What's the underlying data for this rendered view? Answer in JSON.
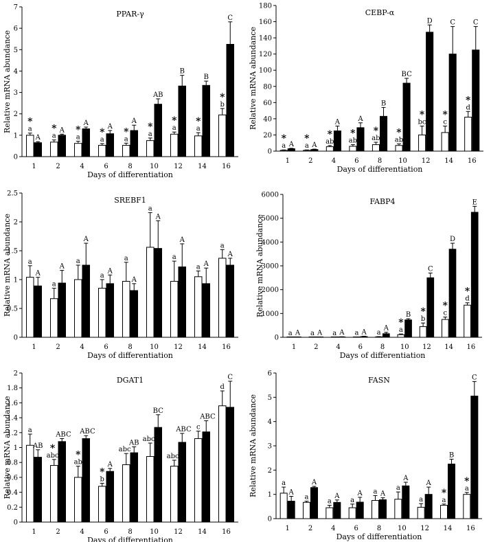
{
  "figure": {
    "panel_count": 6
  },
  "chart_data": [
    {
      "type": "bar",
      "title": "PPAR-γ",
      "xlabel": "Days of differentiation",
      "ylabel": "Relative mRNA abundance",
      "categories": [
        "1",
        "2",
        "4",
        "6",
        "8",
        "10",
        "12",
        "14",
        "16"
      ],
      "ylim": [
        0,
        7
      ],
      "yticks": [
        "0",
        "1",
        "2",
        "3",
        "4",
        "5",
        "6",
        "7"
      ],
      "series": [
        {
          "name": "open",
          "fill": "#ffffff",
          "values": [
            1.0,
            0.68,
            0.62,
            0.53,
            0.53,
            0.75,
            1.05,
            0.97,
            1.95
          ],
          "errors": [
            0.1,
            0.1,
            0.1,
            0.08,
            0.1,
            0.12,
            0.1,
            0.15,
            0.3
          ],
          "letters": [
            "a",
            "a",
            "a",
            "a",
            "a",
            "a",
            "a",
            "a",
            "b"
          ],
          "stars": [
            "*",
            "*",
            "*",
            "*",
            "*",
            "*",
            "*",
            "*",
            "*"
          ]
        },
        {
          "name": "filled",
          "fill": "#000000",
          "values": [
            0.65,
            1.0,
            1.3,
            1.07,
            1.22,
            2.45,
            3.3,
            3.33,
            5.25
          ],
          "errors": [
            0.05,
            0.05,
            0.08,
            0.15,
            0.25,
            0.25,
            0.5,
            0.2,
            1.05
          ],
          "letters": [
            "A",
            "A",
            "A",
            "A",
            "A",
            "AB",
            "B",
            "B",
            "C"
          ]
        }
      ]
    },
    {
      "type": "bar",
      "title": "CEBP-α",
      "xlabel": "Days of differentiation",
      "ylabel": "Relative mRNA abundance",
      "categories": [
        "1",
        "2",
        "4",
        "6",
        "8",
        "10",
        "12",
        "14",
        "16"
      ],
      "ylim": [
        0,
        180
      ],
      "yticks": [
        "0",
        "20",
        "40",
        "60",
        "80",
        "100",
        "120",
        "140",
        "160",
        "180"
      ],
      "series": [
        {
          "name": "open",
          "fill": "#ffffff",
          "values": [
            1.0,
            1.0,
            5.5,
            6.0,
            8.0,
            7.0,
            20.0,
            23.0,
            42.0
          ],
          "errors": [
            0.5,
            0.5,
            1.5,
            2.0,
            3.0,
            2.0,
            11.0,
            8.0,
            7.0
          ],
          "letters": [
            "a",
            "a",
            "ab",
            "ab",
            "ab",
            "ab",
            "bc",
            "c",
            "d"
          ],
          "stars": [
            "*",
            "*",
            "*",
            "*",
            "*",
            "*",
            "*",
            "*",
            "*"
          ]
        },
        {
          "name": "filled",
          "fill": "#000000",
          "values": [
            3.0,
            2.0,
            25.0,
            29.0,
            43.0,
            84.0,
            147.0,
            120.0,
            125.0
          ],
          "errors": [
            0.5,
            0.5,
            6.0,
            6.0,
            11.0,
            6.0,
            9.0,
            34.0,
            29.0
          ],
          "letters": [
            "A",
            "A",
            "A",
            "A",
            "B",
            "BC",
            "D",
            "C",
            "C"
          ]
        }
      ]
    },
    {
      "type": "bar",
      "title": "SREBF1",
      "xlabel": "Days of differentiation",
      "ylabel": "Relative mRNA abundance",
      "categories": [
        "1",
        "2",
        "4",
        "6",
        "8",
        "10",
        "12",
        "14",
        "16"
      ],
      "ylim": [
        0,
        2.5
      ],
      "yticks": [
        "0",
        "0.5",
        "1",
        "1.5",
        "2",
        "2.5"
      ],
      "series": [
        {
          "name": "open",
          "fill": "#ffffff",
          "values": [
            1.04,
            0.67,
            1.0,
            0.85,
            0.97,
            1.56,
            0.97,
            1.05,
            1.37
          ],
          "errors": [
            0.2,
            0.18,
            0.25,
            0.15,
            0.33,
            0.6,
            0.35,
            0.1,
            0.15
          ],
          "letters": [
            "a",
            "a",
            "a",
            "a",
            "a",
            "a",
            "a",
            "a",
            "a"
          ],
          "stars": [
            "",
            "",
            "",
            "",
            "",
            "",
            "",
            "",
            ""
          ]
        },
        {
          "name": "filled",
          "fill": "#000000",
          "values": [
            0.89,
            0.94,
            1.25,
            0.93,
            0.81,
            1.54,
            1.22,
            0.93,
            1.25
          ],
          "errors": [
            0.15,
            0.22,
            0.38,
            0.15,
            0.12,
            0.48,
            0.4,
            0.27,
            0.12
          ],
          "letters": [
            "A",
            "A",
            "A",
            "A",
            "A",
            "A",
            "A",
            "A",
            "A"
          ]
        }
      ]
    },
    {
      "type": "bar",
      "title": "FABP4",
      "xlabel": "Days of differentiation",
      "ylabel": "Relative mRNA abundance",
      "categories": [
        "1",
        "2",
        "4",
        "6",
        "8",
        "10",
        "12",
        "14",
        "16"
      ],
      "ylim": [
        0,
        6000
      ],
      "yticks": [
        "0",
        "1000",
        "2000",
        "3000",
        "4000",
        "5000",
        "6000"
      ],
      "series": [
        {
          "name": "open",
          "fill": "#ffffff",
          "values": [
            2,
            2,
            3,
            5,
            20,
            110,
            450,
            750,
            1350
          ],
          "errors": [
            2,
            2,
            3,
            4,
            10,
            30,
            150,
            100,
            100
          ],
          "letters": [
            "a",
            "a",
            "a",
            "a",
            "a",
            "a",
            "b",
            "c",
            "d"
          ],
          "stars": [
            "",
            "",
            "",
            "",
            "",
            "*",
            "*",
            "*",
            "*"
          ]
        },
        {
          "name": "filled",
          "fill": "#000000",
          "values": [
            5,
            8,
            15,
            30,
            150,
            730,
            2500,
            3700,
            5250
          ],
          "errors": [
            3,
            4,
            8,
            15,
            60,
            50,
            200,
            250,
            250
          ],
          "letters": [
            "A",
            "A",
            "A",
            "A",
            "A",
            "B",
            "C",
            "D",
            "E"
          ]
        }
      ]
    },
    {
      "type": "bar",
      "title": "DGAT1",
      "xlabel": "Days of differentiation",
      "ylabel": "Relative mRNA abundance",
      "categories": [
        "1",
        "2",
        "4",
        "6",
        "8",
        "10",
        "12",
        "14",
        "16"
      ],
      "ylim": [
        0,
        2
      ],
      "yticks": [
        "0",
        "0.2",
        "0.4",
        "0.6",
        "0.8",
        "1",
        "1.2",
        "1.4",
        "1.6",
        "1.8",
        "2"
      ],
      "series": [
        {
          "name": "open",
          "fill": "#ffffff",
          "values": [
            1.03,
            0.76,
            0.6,
            0.48,
            0.77,
            0.88,
            0.75,
            1.12,
            1.56
          ],
          "errors": [
            0.15,
            0.08,
            0.15,
            0.04,
            0.15,
            0.18,
            0.08,
            0.1,
            0.2
          ],
          "letters": [
            "a",
            "abc",
            "ab",
            "b",
            "abc",
            "abc",
            "abc",
            "c",
            "d"
          ],
          "stars": [
            "",
            "*",
            "*",
            "*",
            "",
            "",
            "",
            "",
            ""
          ]
        },
        {
          "name": "filled",
          "fill": "#000000",
          "values": [
            0.87,
            1.08,
            1.12,
            0.68,
            0.93,
            1.27,
            1.07,
            1.21,
            1.54
          ],
          "errors": [
            0.1,
            0.04,
            0.04,
            0.04,
            0.08,
            0.17,
            0.12,
            0.15,
            0.35
          ],
          "letters": [
            "AB",
            "ABC",
            "ABC",
            "A",
            "AB",
            "BC",
            "ABC",
            "ABC",
            "C"
          ]
        }
      ]
    },
    {
      "type": "bar",
      "title": "FASN",
      "xlabel": "Days of differentiation",
      "ylabel": "Relative mRNA abundance",
      "categories": [
        "1",
        "2",
        "4",
        "6",
        "8",
        "10",
        "12",
        "14",
        "16"
      ],
      "ylim": [
        0,
        6
      ],
      "yticks": [
        "0",
        "1",
        "2",
        "3",
        "4",
        "5",
        "6"
      ],
      "series": [
        {
          "name": "open",
          "fill": "#ffffff",
          "values": [
            1.05,
            0.67,
            0.45,
            0.45,
            0.75,
            0.8,
            0.47,
            0.55,
            1.0
          ],
          "errors": [
            0.25,
            0.05,
            0.1,
            0.15,
            0.2,
            0.3,
            0.15,
            0.05,
            0.08
          ],
          "letters": [
            "a",
            "a",
            "a",
            "a",
            "a",
            "a",
            "a",
            "a",
            "a"
          ],
          "stars": [
            "",
            "",
            "",
            "",
            "",
            "",
            "",
            "*",
            "*"
          ]
        },
        {
          "name": "filled",
          "fill": "#000000",
          "values": [
            0.72,
            1.28,
            0.67,
            0.68,
            0.78,
            1.35,
            1.0,
            2.25,
            5.05
          ],
          "errors": [
            0.2,
            0.05,
            0.1,
            0.2,
            0.08,
            0.15,
            0.3,
            0.2,
            0.6
          ],
          "letters": [
            "A",
            "A",
            "A",
            "A",
            "A",
            "A",
            "A",
            "B",
            "C"
          ]
        }
      ]
    }
  ]
}
